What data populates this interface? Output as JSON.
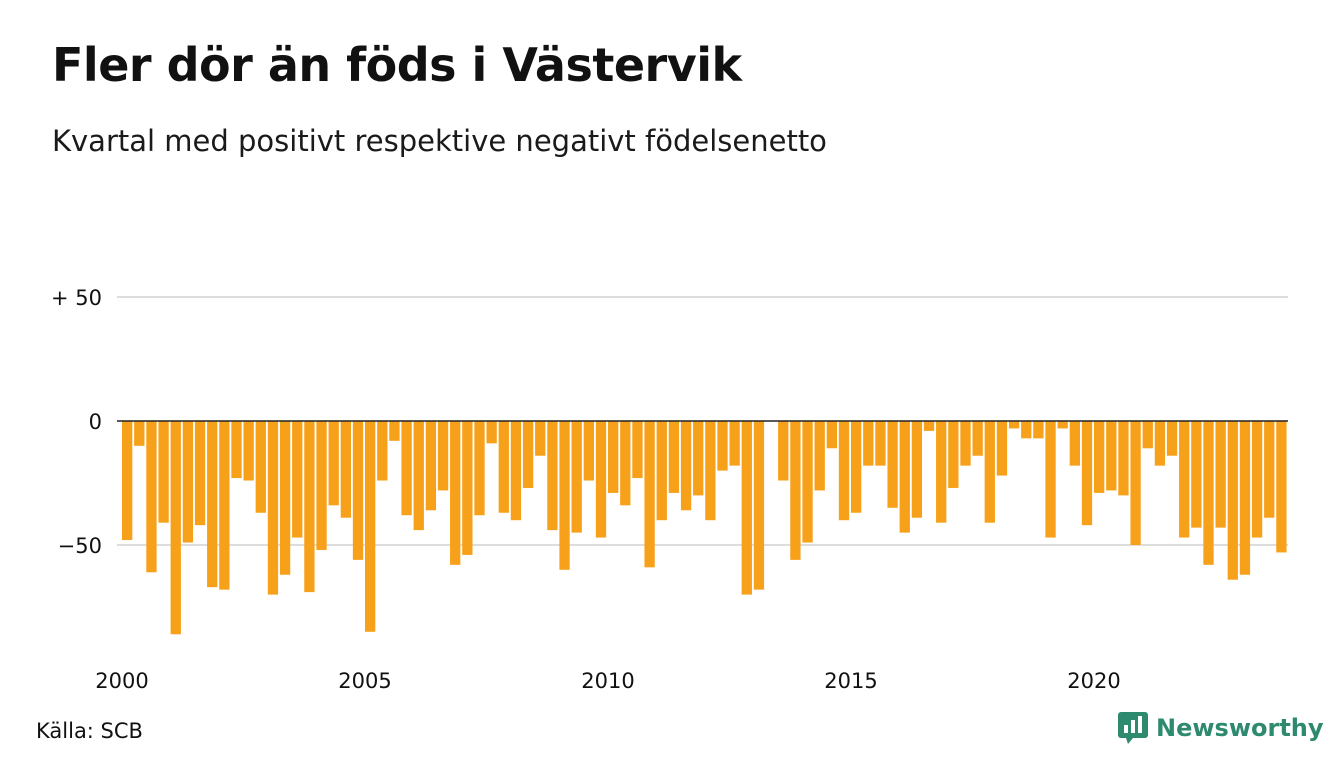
{
  "header": {
    "title": "Fler dör än föds i Västervik",
    "subtitle": "Kvartal med positivt respektive negativt födelsenetto"
  },
  "footer": {
    "source": "Källa: SCB",
    "brand": "Newsworthy",
    "brand_icon": "newsworthy-logo-icon"
  },
  "colors": {
    "bar": "#f7a11a",
    "grid": "#dddddd",
    "zero_line": "#222222",
    "brand": "#2e8a6f"
  },
  "chart_data": {
    "type": "bar",
    "title": "Fler dör än föds i Västervik",
    "subtitle": "Kvartal med positivt respektive negativt födelsenetto",
    "xlabel": "",
    "ylabel": "",
    "ylim": [
      -93,
      50
    ],
    "yticks": [
      50,
      0,
      -50
    ],
    "ytick_labels": [
      "+ 50",
      "0",
      "−50"
    ],
    "xticks": [
      "2000",
      "2005",
      "2010",
      "2015",
      "2020"
    ],
    "grid": true,
    "start_year": 2000,
    "quarters_per_year": 4,
    "values": [
      -48,
      -10,
      -61,
      -41,
      -86,
      -49,
      -42,
      -67,
      -68,
      -23,
      -24,
      -37,
      -70,
      -62,
      -47,
      -69,
      -52,
      -34,
      -39,
      -56,
      -85,
      -24,
      -8,
      -38,
      -44,
      -36,
      -28,
      -58,
      -54,
      -38,
      -9,
      -37,
      -40,
      -27,
      -14,
      -44,
      -60,
      -45,
      -24,
      -47,
      -29,
      -34,
      -23,
      -59,
      -40,
      -29,
      -36,
      -30,
      -40,
      -20,
      -18,
      -70,
      -68,
      0,
      -24,
      -56,
      -49,
      -28,
      -11,
      -40,
      -37,
      -18,
      -18,
      -35,
      -45,
      -39,
      -4,
      -41,
      -27,
      -18,
      -14,
      -41,
      -22,
      -3,
      -7,
      -7,
      -47,
      -3,
      -18,
      -42,
      -29,
      -28,
      -30,
      -50,
      -11,
      -18,
      -14,
      -47,
      -43,
      -58,
      -43,
      -64,
      -62,
      -47,
      -39,
      -53
    ]
  }
}
